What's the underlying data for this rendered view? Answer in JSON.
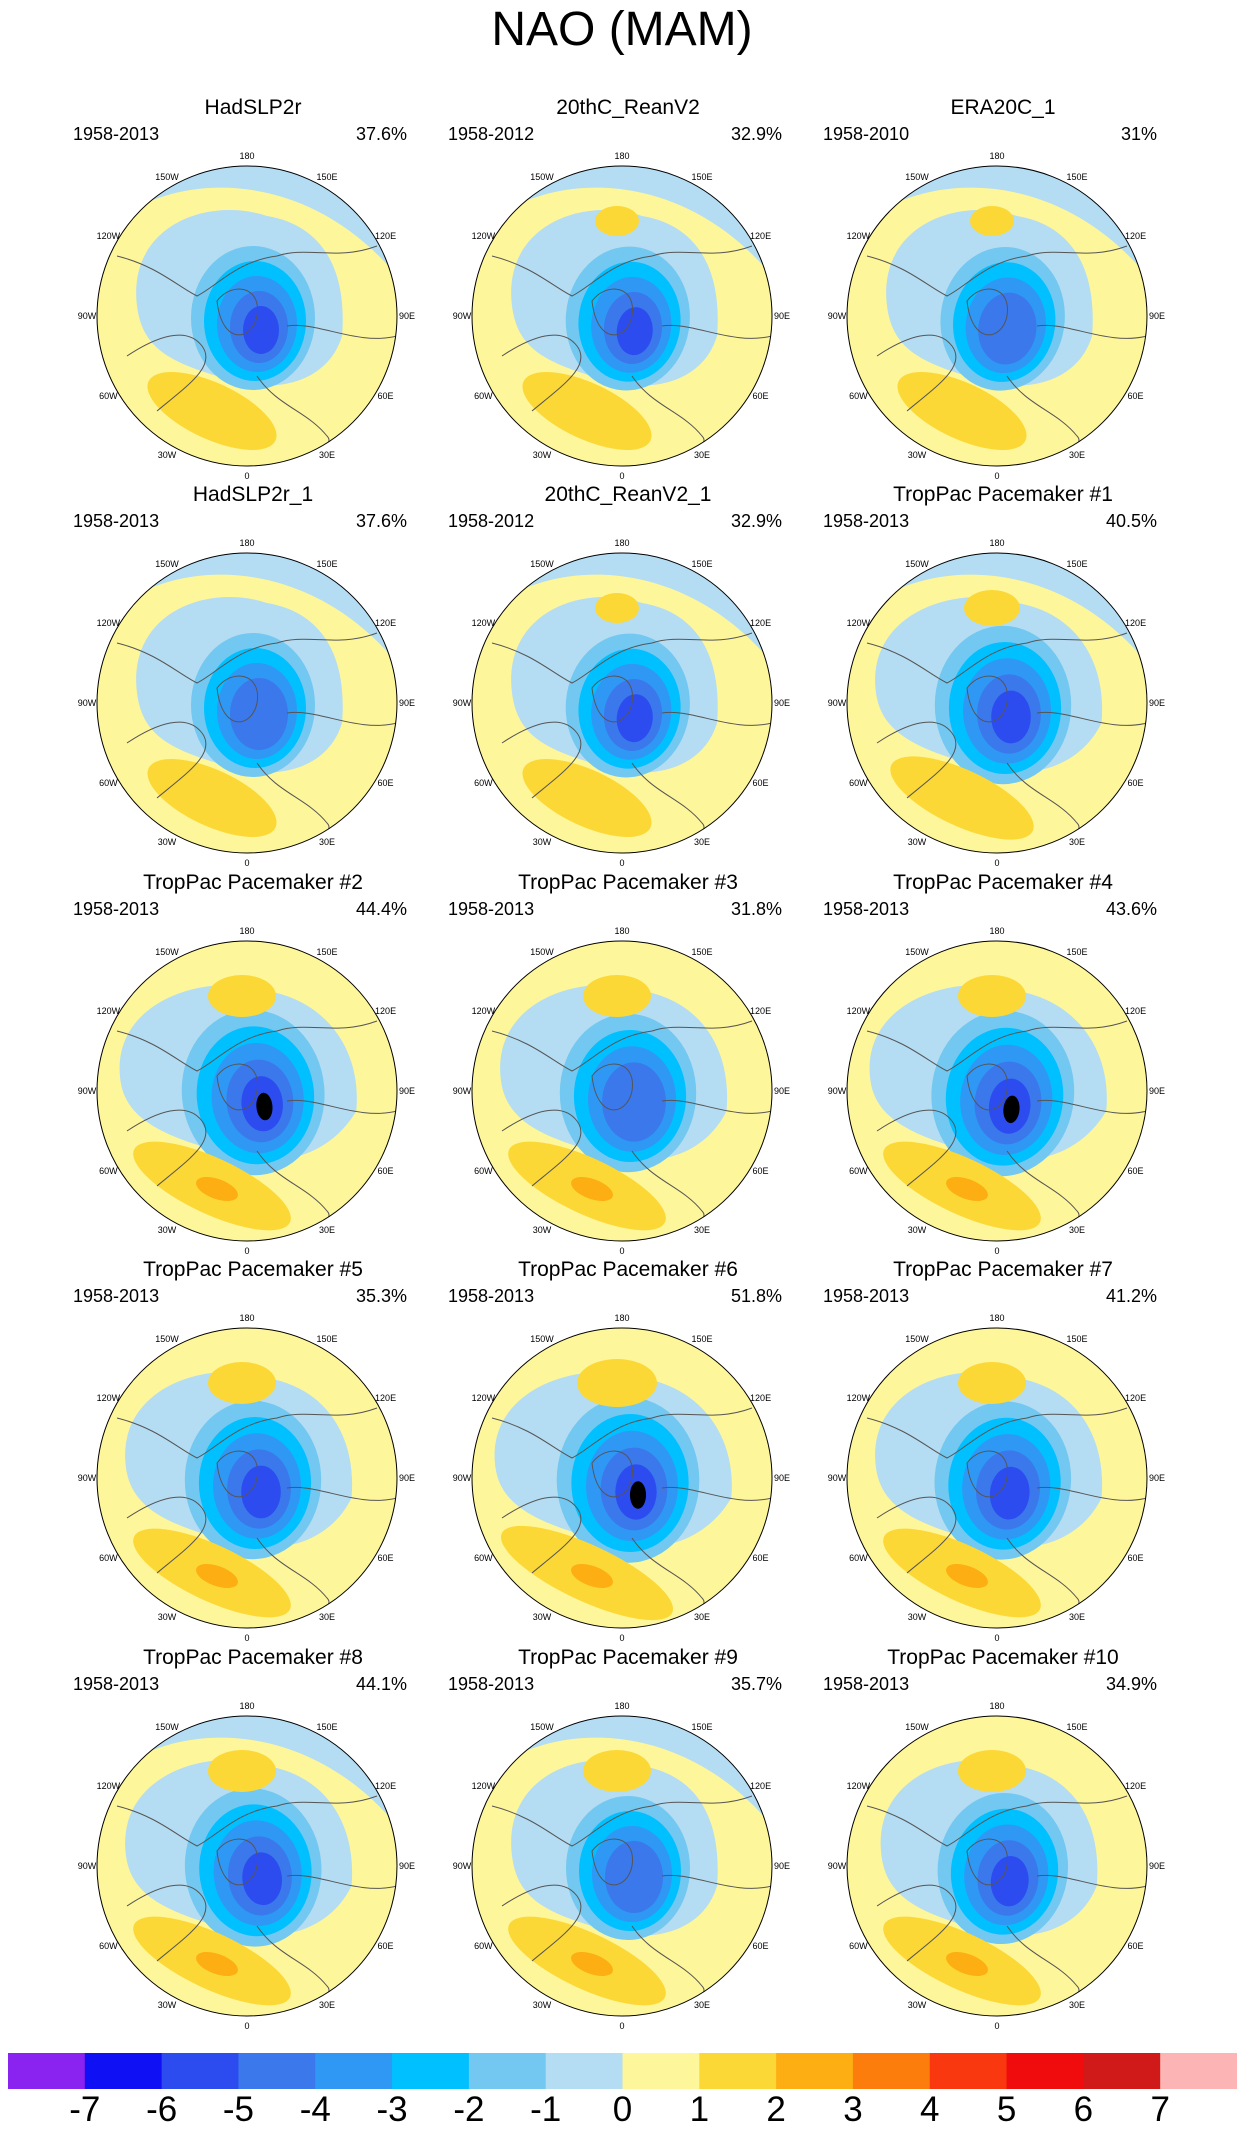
{
  "title": "NAO (MAM)",
  "panels": [
    {
      "name": "HadSLP2r",
      "years": "1958-2013",
      "percent": "37.6%"
    },
    {
      "name": "20thC_ReanV2",
      "years": "1958-2012",
      "percent": "32.9%"
    },
    {
      "name": "ERA20C_1",
      "years": "1958-2010",
      "percent": "31%"
    },
    {
      "name": "HadSLP2r_1",
      "years": "1958-2013",
      "percent": "37.6%"
    },
    {
      "name": "20thC_ReanV2_1",
      "years": "1958-2012",
      "percent": "32.9%"
    },
    {
      "name": "TropPac Pacemaker #1",
      "years": "1958-2013",
      "percent": "40.5%"
    },
    {
      "name": "TropPac Pacemaker #2",
      "years": "1958-2013",
      "percent": "44.4%"
    },
    {
      "name": "TropPac Pacemaker #3",
      "years": "1958-2013",
      "percent": "31.8%"
    },
    {
      "name": "TropPac Pacemaker #4",
      "years": "1958-2013",
      "percent": "43.6%"
    },
    {
      "name": "TropPac Pacemaker #5",
      "years": "1958-2013",
      "percent": "35.3%"
    },
    {
      "name": "TropPac Pacemaker #6",
      "years": "1958-2013",
      "percent": "51.8%"
    },
    {
      "name": "TropPac Pacemaker #7",
      "years": "1958-2013",
      "percent": "41.2%"
    },
    {
      "name": "TropPac Pacemaker #8",
      "years": "1958-2013",
      "percent": "44.1%"
    },
    {
      "name": "TropPac Pacemaker #9",
      "years": "1958-2013",
      "percent": "35.7%"
    },
    {
      "name": "TropPac Pacemaker #10",
      "years": "1958-2013",
      "percent": "34.9%"
    }
  ],
  "longitude_labels": [
    "180",
    "150E",
    "120E",
    "90E",
    "60E",
    "30E",
    "0",
    "30W",
    "60W",
    "90W",
    "120W",
    "150W"
  ],
  "colorbar": {
    "labels": [
      "-7",
      "-6",
      "-5",
      "-4",
      "-3",
      "-2",
      "-1",
      "0",
      "1",
      "2",
      "3",
      "4",
      "5",
      "6",
      "7"
    ],
    "colors": [
      "#8a22f0",
      "#1010f5",
      "#2c4cf0",
      "#3a78ec",
      "#2f98f5",
      "#00c0ff",
      "#72c8f0",
      "#b4dcf2",
      "#fef69a",
      "#fcd836",
      "#fcae12",
      "#fc7c0c",
      "#fa3810",
      "#f00c0c",
      "#d01a1a",
      "#fcb4b4"
    ]
  },
  "contour_colors": {
    "ocean_bg": "#fef69a",
    "neg1": "#b4dcf2",
    "neg2": "#72c8f0",
    "neg3": "#00c0ff",
    "neg4": "#2f98f5",
    "neg5": "#3a78ec",
    "neg6": "#2c4cf0",
    "pos2": "#fcd836",
    "pos3": "#fcae12",
    "coast": "#555555"
  }
}
